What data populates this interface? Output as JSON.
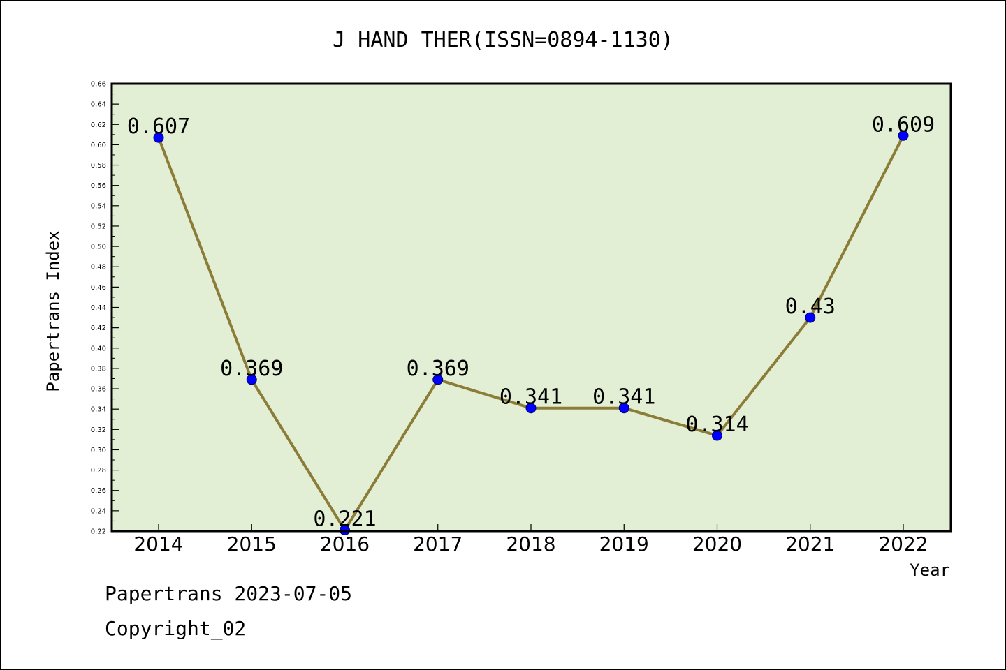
{
  "colors": {
    "plot_background": "#e2efd5",
    "line": "#8b7d38",
    "marker_fill": "#0000ff",
    "marker_stroke": "#000066",
    "text": "#000000"
  },
  "footer": {
    "source": "Papertrans 2023-07-05",
    "copyright": "Copyright_02"
  },
  "chart_data": {
    "type": "line",
    "title": "J HAND THER(ISSN=0894-1130)",
    "xlabel": "Year",
    "ylabel": "Papertrans Index",
    "categories": [
      "2014",
      "2015",
      "2016",
      "2017",
      "2018",
      "2019",
      "2020",
      "2021",
      "2022"
    ],
    "series": [
      {
        "values": [
          0.607,
          0.369,
          0.221,
          0.369,
          0.341,
          0.341,
          0.314,
          0.43,
          0.609
        ],
        "labels": [
          "0.607",
          "0.369",
          "0.221",
          "0.369",
          "0.341",
          "0.341",
          "0.314",
          "0.43",
          "0.609"
        ]
      }
    ],
    "ylim": [
      0.22,
      0.66
    ],
    "ytick_step": 0.02,
    "ytick_labels": [
      "0.22",
      "0.24",
      "0.26",
      "0.28",
      "0.30",
      "0.32",
      "0.34",
      "0.36",
      "0.38",
      "0.40",
      "0.42",
      "0.44",
      "0.46",
      "0.48",
      "0.50",
      "0.52",
      "0.54",
      "0.56",
      "0.58",
      "0.60",
      "0.62",
      "0.64",
      "0.66"
    ],
    "grid": false,
    "legend": "none"
  }
}
